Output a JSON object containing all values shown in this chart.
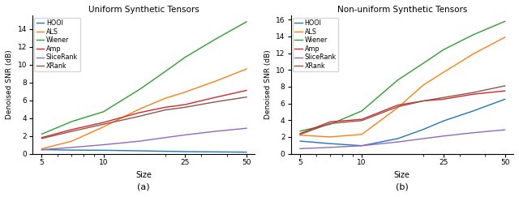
{
  "title_left": "Uniform Synthetic Tensors",
  "title_right": "Non-uniform Synthetic Tensors",
  "xlabel": "Size",
  "ylabel": "Denoised SNR (dB)",
  "caption_left": "(a)",
  "caption_right": "(b)",
  "x": [
    5,
    7,
    10,
    15,
    20,
    25,
    35,
    50
  ],
  "uniform": {
    "HOOI": [
      0.45,
      0.4,
      0.38,
      0.32,
      0.27,
      0.23,
      0.2,
      0.17
    ],
    "ALS": [
      0.55,
      1.4,
      3.0,
      5.0,
      6.2,
      6.9,
      8.1,
      9.5
    ],
    "Wiener": [
      2.2,
      3.6,
      4.7,
      7.2,
      9.2,
      10.8,
      12.8,
      14.8
    ],
    "Amp": [
      1.8,
      2.7,
      3.5,
      4.6,
      5.2,
      5.5,
      6.3,
      7.1
    ],
    "SliceRank": [
      0.45,
      0.7,
      1.0,
      1.4,
      1.8,
      2.1,
      2.5,
      2.85
    ],
    "XRank": [
      1.7,
      2.5,
      3.3,
      4.2,
      4.9,
      5.2,
      5.8,
      6.35
    ]
  },
  "nonuniform": {
    "HOOI": [
      1.5,
      1.2,
      0.95,
      1.8,
      2.9,
      3.9,
      5.1,
      6.5
    ],
    "ALS": [
      2.2,
      2.0,
      2.3,
      5.5,
      8.2,
      9.7,
      11.9,
      13.9
    ],
    "Wiener": [
      2.7,
      3.5,
      5.1,
      8.8,
      10.8,
      12.4,
      14.2,
      15.8
    ],
    "Amp": [
      2.4,
      3.8,
      4.1,
      5.8,
      6.3,
      6.5,
      7.1,
      7.5
    ],
    "SliceRank": [
      0.6,
      0.75,
      0.95,
      1.4,
      1.8,
      2.1,
      2.5,
      2.85
    ],
    "XRank": [
      2.3,
      3.6,
      3.95,
      5.6,
      6.3,
      6.7,
      7.3,
      8.1
    ]
  },
  "colors": {
    "HOOI": "#1f77b4",
    "ALS": "#ff7f0e",
    "Wiener": "#2ca02c",
    "Amp": "#d62728",
    "SliceRank": "#9467bd",
    "XRank": "#8c564b"
  },
  "ylim_left": [
    0,
    15.5
  ],
  "ylim_right": [
    0,
    16.5
  ],
  "yticks_left": [
    0,
    2,
    4,
    6,
    8,
    10,
    12,
    14
  ],
  "yticks_right": [
    0,
    2,
    4,
    6,
    8,
    10,
    12,
    14,
    16
  ],
  "xticks": [
    5,
    10,
    25,
    50
  ],
  "xlim": [
    4.5,
    55
  ]
}
